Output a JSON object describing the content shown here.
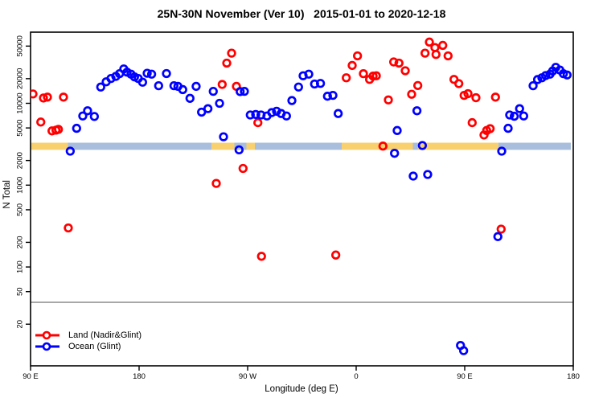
{
  "title": "25N-30N November (Ver 10)   2015-01-01 to 2020-12-18",
  "chart_data": {
    "type": "scatter",
    "title": "25N-30N November (Ver 10)   2015-01-01 to 2020-12-18",
    "xlabel": "Longitude (deg E)",
    "ylabel": "N Total",
    "x_axis": {
      "unit": "deg E",
      "span": 450,
      "description": "axis starts at 90 E and runs eastward around the globe; the 90E-180 sector is shown at both ends",
      "ticks": [
        {
          "pos": 0,
          "label": "90 E"
        },
        {
          "pos": 90,
          "label": "180"
        },
        {
          "pos": 180,
          "label": "90 W"
        },
        {
          "pos": 270,
          "label": "0"
        },
        {
          "pos": 360,
          "label": "90 E"
        },
        {
          "pos": 450,
          "label": "180"
        }
      ]
    },
    "y_axis": {
      "scale": "log",
      "range": [
        6.2,
        74000
      ],
      "ticks": [
        20,
        50,
        100,
        200,
        500,
        1000,
        2000,
        5000,
        10000,
        20000,
        50000
      ]
    },
    "reference_line": {
      "value": 37,
      "color": "#a8a8a8"
    },
    "surface_band": {
      "value_range": [
        2700,
        3300
      ],
      "land_color": "#f8d06e",
      "ocean_color": "#a9bedc",
      "segments": [
        {
          "type": "land",
          "from": 0,
          "to": 31
        },
        {
          "type": "ocean",
          "from": 31,
          "to": 150
        },
        {
          "type": "land",
          "from": 150,
          "to": 169
        },
        {
          "type": "ocean",
          "from": 169,
          "to": 179
        },
        {
          "type": "land",
          "from": 179,
          "to": 186
        },
        {
          "type": "ocean",
          "from": 186,
          "to": 258
        },
        {
          "type": "land",
          "from": 258,
          "to": 317
        },
        {
          "type": "ocean",
          "from": 317,
          "to": 321
        },
        {
          "type": "land",
          "from": 321,
          "to": 388
        },
        {
          "type": "ocean",
          "from": 388,
          "to": 448
        }
      ]
    },
    "series": [
      {
        "name": "Land (Nadir&Glint)",
        "color": "#ff0000",
        "points": [
          [
            2,
            13000
          ],
          [
            10.7,
            11600
          ],
          [
            14,
            11900
          ],
          [
            27.3,
            11900
          ],
          [
            8.5,
            5900
          ],
          [
            17.8,
            4600
          ],
          [
            21.1,
            4700
          ],
          [
            23.1,
            4800
          ],
          [
            31.3,
            300
          ],
          [
            154,
            1050
          ],
          [
            158.9,
            17000
          ],
          [
            162.7,
            31000
          ],
          [
            166.7,
            41000
          ],
          [
            170.7,
            16100
          ],
          [
            176.2,
            1600
          ],
          [
            188.5,
            5800
          ],
          [
            191.5,
            135
          ],
          [
            253.1,
            140
          ],
          [
            261.8,
            20500
          ],
          [
            266.7,
            29000
          ],
          [
            271.1,
            38000
          ],
          [
            276,
            23000
          ],
          [
            281.1,
            19600
          ],
          [
            284,
            21500
          ],
          [
            286.7,
            21700
          ],
          [
            292.2,
            3000
          ],
          [
            296.7,
            11000
          ],
          [
            301.1,
            32000
          ],
          [
            305.5,
            31000
          ],
          [
            310.7,
            25000
          ],
          [
            316,
            12900
          ],
          [
            321.1,
            16500
          ],
          [
            327.1,
            41000
          ],
          [
            330.7,
            56000
          ],
          [
            335.3,
            48000
          ],
          [
            336.2,
            39500
          ],
          [
            341.8,
            51000
          ],
          [
            346.2,
            38000
          ],
          [
            351.1,
            19600
          ],
          [
            355.1,
            17400
          ],
          [
            359.5,
            12500
          ],
          [
            362.7,
            13100
          ],
          [
            369.3,
            11700
          ],
          [
            385.5,
            11900
          ],
          [
            366.2,
            5800
          ],
          [
            376,
            4100
          ],
          [
            378.2,
            4650
          ],
          [
            381.1,
            4900
          ],
          [
            390.2,
            290
          ]
        ]
      },
      {
        "name": "Ocean (Glint)",
        "color": "#0000ff",
        "points": [
          [
            32.9,
            2600
          ],
          [
            38.2,
            4950
          ],
          [
            43.3,
            7000
          ],
          [
            47.3,
            8100
          ],
          [
            52.9,
            6900
          ],
          [
            58.2,
            15800
          ],
          [
            62.7,
            18300
          ],
          [
            66.7,
            20100
          ],
          [
            70.7,
            21300
          ],
          [
            73.8,
            23000
          ],
          [
            77.3,
            26300
          ],
          [
            80,
            24000
          ],
          [
            83.3,
            22700
          ],
          [
            86.2,
            21000
          ],
          [
            89.3,
            20100
          ],
          [
            92.9,
            18100
          ],
          [
            96.7,
            23300
          ],
          [
            100.4,
            22700
          ],
          [
            106.2,
            16400
          ],
          [
            112.7,
            23100
          ],
          [
            118.9,
            16400
          ],
          [
            122.2,
            16100
          ],
          [
            126.2,
            14700
          ],
          [
            132.2,
            11500
          ],
          [
            137.3,
            16100
          ],
          [
            141.8,
            7800
          ],
          [
            147.1,
            8600
          ],
          [
            151.5,
            14000
          ],
          [
            156.7,
            10000
          ],
          [
            160,
            3900
          ],
          [
            172.9,
            2700
          ],
          [
            173.8,
            13900
          ],
          [
            177.3,
            14000
          ],
          [
            182.2,
            7200
          ],
          [
            186.7,
            7300
          ],
          [
            191.1,
            7200
          ],
          [
            196,
            7000
          ],
          [
            200,
            7700
          ],
          [
            204,
            8000
          ],
          [
            207.8,
            7500
          ],
          [
            212.2,
            7000
          ],
          [
            216.7,
            10800
          ],
          [
            222.2,
            15800
          ],
          [
            226,
            21700
          ],
          [
            230.7,
            22700
          ],
          [
            235.5,
            17200
          ],
          [
            240.4,
            17500
          ],
          [
            246.2,
            12200
          ],
          [
            250.7,
            12500
          ],
          [
            255.1,
            7500
          ],
          [
            301.8,
            2450
          ],
          [
            304,
            4650
          ],
          [
            317.3,
            1290
          ],
          [
            320.4,
            8100
          ],
          [
            324.9,
            3050
          ],
          [
            329.3,
            1350
          ],
          [
            356.5,
            11
          ],
          [
            359.1,
            9.5
          ],
          [
            387.5,
            235
          ],
          [
            390.7,
            2600
          ],
          [
            396,
            4950
          ],
          [
            397.3,
            7200
          ],
          [
            401.1,
            6950
          ],
          [
            405.5,
            8600
          ],
          [
            408.9,
            7000
          ],
          [
            416.7,
            16400
          ],
          [
            420.4,
            19500
          ],
          [
            424,
            20500
          ],
          [
            427.1,
            21800
          ],
          [
            430.7,
            22700
          ],
          [
            432.9,
            24800
          ],
          [
            435.5,
            27500
          ],
          [
            438.9,
            25500
          ],
          [
            441.8,
            23000
          ],
          [
            444.9,
            22200
          ]
        ]
      }
    ],
    "legend_position": "bottom-left"
  }
}
